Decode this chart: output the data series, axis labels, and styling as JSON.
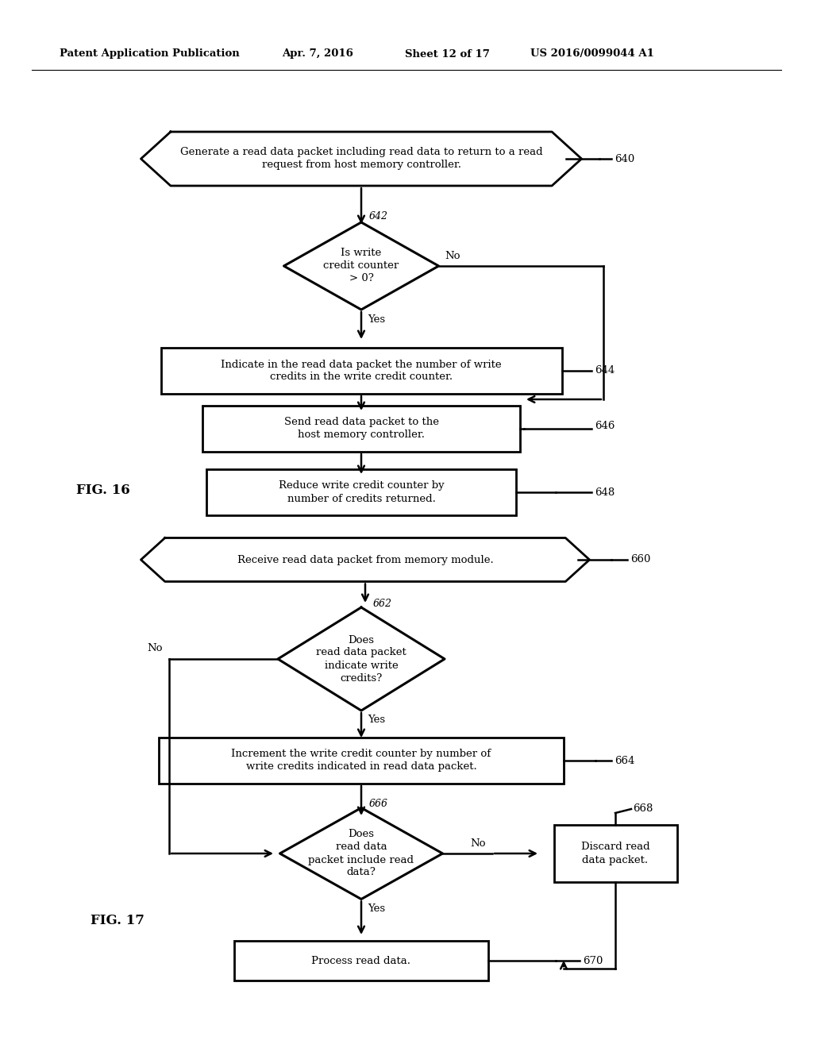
{
  "bg_color": "#ffffff",
  "header_text": "Patent Application Publication",
  "header_date": "Apr. 7, 2016",
  "header_sheet": "Sheet 12 of 17",
  "header_patent": "US 2016/0099044 A1",
  "fig16_label": "FIG. 16",
  "fig17_label": "FIG. 17",
  "node_640_text": "Generate a read data packet including read data to return to a read\nrequest from host memory controller.",
  "node_642_text": "Is write\ncredit counter\n> 0?",
  "node_644_text": "Indicate in the read data packet the number of write\ncredits in the write credit counter.",
  "node_646_text": "Send read data packet to the\nhost memory controller.",
  "node_648_text": "Reduce write credit counter by\nnumber of credits returned.",
  "node_660_text": "Receive read data packet from memory module.",
  "node_662_text": "Does\nread data packet\nindicate write\ncredits?",
  "node_664_text": "Increment the write credit counter by number of\nwrite credits indicated in read data packet.",
  "node_666_text": "Does\nread data\npacket include read\ndata?",
  "node_668_text": "Discard read\ndata packet.",
  "node_670_text": "Process read data."
}
